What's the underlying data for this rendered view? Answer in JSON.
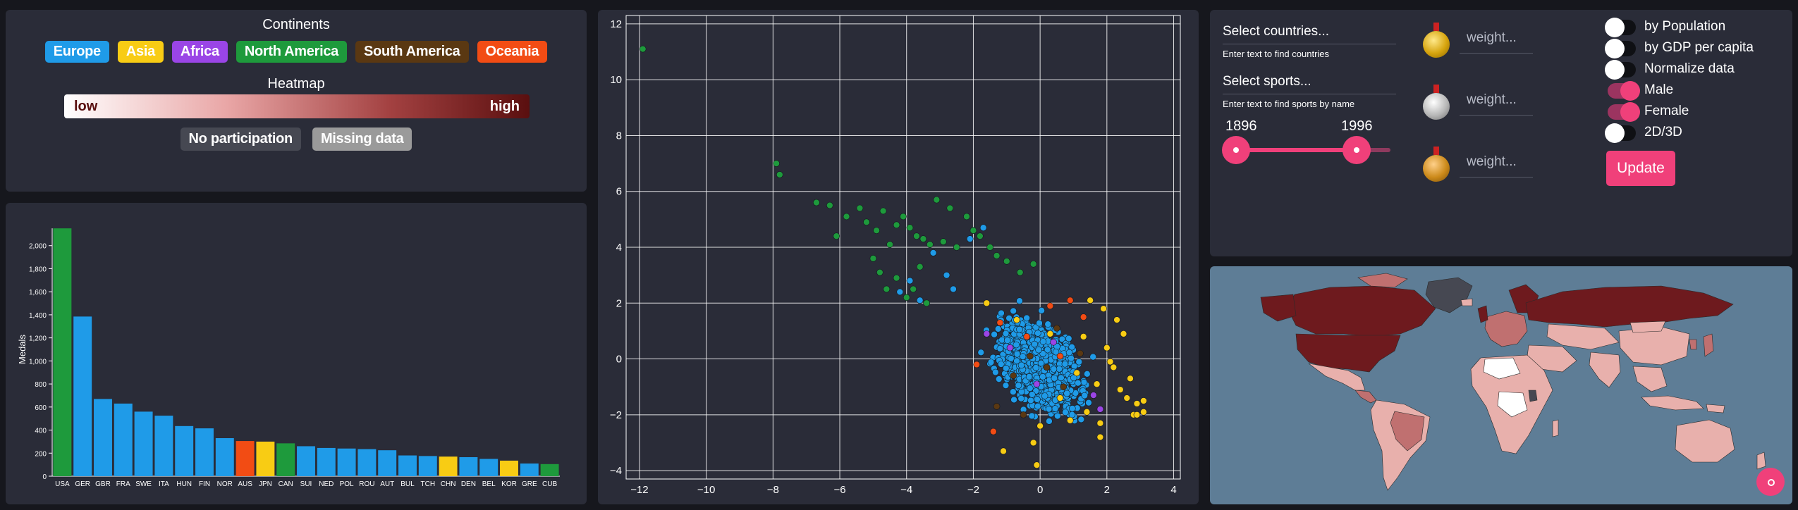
{
  "legend": {
    "continents_title": "Continents",
    "continents": [
      {
        "label": "Europe",
        "color": "#1f9be8",
        "text_color": "#ffffff"
      },
      {
        "label": "Asia",
        "color": "#f8cc14",
        "text_color": "#ffffff"
      },
      {
        "label": "Africa",
        "color": "#9a45e6",
        "text_color": "#ffffff"
      },
      {
        "label": "North America",
        "color": "#1e9a3c",
        "text_color": "#ffffff"
      },
      {
        "label": "South America",
        "color": "#5a3812",
        "text_color": "#ffffff"
      },
      {
        "label": "Oceania",
        "color": "#f24c14",
        "text_color": "#ffffff"
      }
    ],
    "heatmap_title": "Heatmap",
    "heatmap_low": "low",
    "heatmap_high": "high",
    "no_participation": "No participation",
    "no_participation_color": "#464852",
    "missing_data": "Missing data",
    "missing_data_color": "#9a9a9a"
  },
  "chart_data": [
    {
      "type": "bar",
      "ylabel": "Medals",
      "ylim": [
        0,
        2200
      ],
      "yticks": [
        0,
        200,
        400,
        600,
        800,
        1000,
        1200,
        1400,
        1600,
        1800,
        2000
      ],
      "ytick_labels": [
        "0",
        "200",
        "400",
        "600",
        "800",
        "1,000",
        "1,200",
        "1,400",
        "1,600",
        "1,800",
        "2,000"
      ],
      "categories": [
        "USA",
        "GER",
        "GBR",
        "FRA",
        "SWE",
        "ITA",
        "HUN",
        "FIN",
        "NOR",
        "AUS",
        "JPN",
        "CAN",
        "SUI",
        "NED",
        "POL",
        "ROU",
        "AUT",
        "BUL",
        "TCH",
        "CHN",
        "DEN",
        "BEL",
        "KOR",
        "GRE",
        "CUB"
      ],
      "values": [
        2150,
        1385,
        670,
        630,
        560,
        525,
        435,
        415,
        330,
        305,
        300,
        285,
        260,
        245,
        240,
        235,
        225,
        180,
        175,
        170,
        165,
        150,
        135,
        110,
        105
      ],
      "continents": [
        "North America",
        "Europe",
        "Europe",
        "Europe",
        "Europe",
        "Europe",
        "Europe",
        "Europe",
        "Europe",
        "Oceania",
        "Asia",
        "North America",
        "Europe",
        "Europe",
        "Europe",
        "Europe",
        "Europe",
        "Europe",
        "Europe",
        "Asia",
        "Europe",
        "Europe",
        "Asia",
        "Europe",
        "North America"
      ],
      "grid": false
    },
    {
      "type": "scatter",
      "xlim": [
        -12.4,
        4.2
      ],
      "ylim": [
        -4.3,
        12.3
      ],
      "xticks": [
        -12,
        -10,
        -8,
        -6,
        -4,
        -2,
        0,
        2,
        4
      ],
      "xtick_labels": [
        "−12",
        "−10",
        "−8",
        "−6",
        "−4",
        "−2",
        "0",
        "2",
        "4"
      ],
      "yticks": [
        -4,
        -2,
        0,
        2,
        4,
        6,
        8,
        10,
        12
      ],
      "ytick_labels": [
        "−4",
        "−2",
        "0",
        "2",
        "4",
        "6",
        "8",
        "10",
        "12"
      ],
      "grid": true,
      "points": [
        {
          "x": -11.9,
          "y": 11.1,
          "c": "North America"
        },
        {
          "x": -7.9,
          "y": 7.0,
          "c": "North America"
        },
        {
          "x": -7.8,
          "y": 6.6,
          "c": "North America"
        },
        {
          "x": -6.7,
          "y": 5.6,
          "c": "North America"
        },
        {
          "x": -6.3,
          "y": 5.5,
          "c": "North America"
        },
        {
          "x": -6.1,
          "y": 4.4,
          "c": "North America"
        },
        {
          "x": -5.8,
          "y": 5.1,
          "c": "North America"
        },
        {
          "x": -5.4,
          "y": 5.4,
          "c": "North America"
        },
        {
          "x": -5.2,
          "y": 4.9,
          "c": "North America"
        },
        {
          "x": -4.9,
          "y": 4.6,
          "c": "North America"
        },
        {
          "x": -4.7,
          "y": 5.3,
          "c": "North America"
        },
        {
          "x": -4.5,
          "y": 4.1,
          "c": "North America"
        },
        {
          "x": -4.3,
          "y": 4.8,
          "c": "North America"
        },
        {
          "x": -4.1,
          "y": 5.1,
          "c": "North America"
        },
        {
          "x": -3.9,
          "y": 4.7,
          "c": "North America"
        },
        {
          "x": -3.7,
          "y": 4.4,
          "c": "North America"
        },
        {
          "x": -3.5,
          "y": 4.3,
          "c": "North America"
        },
        {
          "x": -3.3,
          "y": 4.1,
          "c": "North America"
        },
        {
          "x": -3.1,
          "y": 5.7,
          "c": "North America"
        },
        {
          "x": -2.9,
          "y": 4.2,
          "c": "North America"
        },
        {
          "x": -2.7,
          "y": 5.4,
          "c": "North America"
        },
        {
          "x": -2.5,
          "y": 4.0,
          "c": "North America"
        },
        {
          "x": -5.0,
          "y": 3.6,
          "c": "North America"
        },
        {
          "x": -4.8,
          "y": 3.1,
          "c": "North America"
        },
        {
          "x": -4.6,
          "y": 2.5,
          "c": "North America"
        },
        {
          "x": -4.3,
          "y": 2.9,
          "c": "North America"
        },
        {
          "x": -4.0,
          "y": 2.2,
          "c": "North America"
        },
        {
          "x": -3.8,
          "y": 2.5,
          "c": "North America"
        },
        {
          "x": -3.6,
          "y": 3.3,
          "c": "North America"
        },
        {
          "x": -3.4,
          "y": 2.0,
          "c": "North America"
        },
        {
          "x": -2.2,
          "y": 5.1,
          "c": "North America"
        },
        {
          "x": -2.0,
          "y": 4.6,
          "c": "North America"
        },
        {
          "x": -1.8,
          "y": 4.4,
          "c": "North America"
        },
        {
          "x": -1.5,
          "y": 4.0,
          "c": "North America"
        },
        {
          "x": -1.3,
          "y": 3.7,
          "c": "North America"
        },
        {
          "x": -1.0,
          "y": 3.5,
          "c": "North America"
        },
        {
          "x": -0.6,
          "y": 3.1,
          "c": "North America"
        },
        {
          "x": -0.2,
          "y": 3.4,
          "c": "North America"
        },
        {
          "x": -3.2,
          "y": 3.8,
          "c": "Europe"
        },
        {
          "x": -2.1,
          "y": 4.3,
          "c": "Europe"
        },
        {
          "x": -1.7,
          "y": 4.7,
          "c": "Europe"
        },
        {
          "x": -3.9,
          "y": 2.8,
          "c": "Europe"
        },
        {
          "x": -4.2,
          "y": 2.4,
          "c": "Europe"
        },
        {
          "x": -3.6,
          "y": 2.1,
          "c": "Europe"
        },
        {
          "x": -2.8,
          "y": 3.0,
          "c": "Europe"
        },
        {
          "x": -2.6,
          "y": 2.5,
          "c": "Europe"
        },
        {
          "x": -1.2,
          "y": 1.3,
          "c": "Oceania"
        },
        {
          "x": -0.4,
          "y": 0.8,
          "c": "Oceania"
        },
        {
          "x": 0.3,
          "y": 1.9,
          "c": "Oceania"
        },
        {
          "x": 0.9,
          "y": 2.1,
          "c": "Oceania"
        },
        {
          "x": 0.6,
          "y": 0.1,
          "c": "Oceania"
        },
        {
          "x": -1.4,
          "y": -2.6,
          "c": "Oceania"
        },
        {
          "x": -1.9,
          "y": -0.2,
          "c": "Oceania"
        },
        {
          "x": 1.3,
          "y": 1.5,
          "c": "Oceania"
        },
        {
          "x": -0.9,
          "y": 0.4,
          "c": "Africa"
        },
        {
          "x": -0.1,
          "y": -0.9,
          "c": "Africa"
        },
        {
          "x": 0.4,
          "y": 0.6,
          "c": "Africa"
        },
        {
          "x": 1.8,
          "y": -1.8,
          "c": "Africa"
        },
        {
          "x": -1.6,
          "y": 0.9,
          "c": "Africa"
        },
        {
          "x": 1.6,
          "y": -1.3,
          "c": "Africa"
        },
        {
          "x": -0.3,
          "y": 0.1,
          "c": "South America"
        },
        {
          "x": 0.2,
          "y": -0.3,
          "c": "South America"
        },
        {
          "x": -0.8,
          "y": -0.6,
          "c": "South America"
        },
        {
          "x": 0.7,
          "y": -1.0,
          "c": "South America"
        },
        {
          "x": 1.2,
          "y": 0.2,
          "c": "South America"
        },
        {
          "x": -1.3,
          "y": -1.7,
          "c": "South America"
        },
        {
          "x": 0.5,
          "y": 1.1,
          "c": "South America"
        },
        {
          "x": -0.5,
          "y": -2.0,
          "c": "South America"
        },
        {
          "x": 2.6,
          "y": -1.4,
          "c": "Asia"
        },
        {
          "x": 2.9,
          "y": -1.6,
          "c": "Asia"
        },
        {
          "x": 3.1,
          "y": -1.5,
          "c": "Asia"
        },
        {
          "x": 2.4,
          "y": -1.1,
          "c": "Asia"
        },
        {
          "x": 2.2,
          "y": -0.3,
          "c": "Asia"
        },
        {
          "x": 2.0,
          "y": 0.4,
          "c": "Asia"
        },
        {
          "x": 1.7,
          "y": -0.9,
          "c": "Asia"
        },
        {
          "x": 1.4,
          "y": -1.9,
          "c": "Asia"
        },
        {
          "x": 1.1,
          "y": -0.5,
          "c": "Asia"
        },
        {
          "x": 2.5,
          "y": 0.9,
          "c": "Asia"
        },
        {
          "x": 1.9,
          "y": 1.8,
          "c": "Asia"
        },
        {
          "x": 1.5,
          "y": 2.1,
          "c": "Asia"
        },
        {
          "x": 0.9,
          "y": -2.2,
          "c": "Asia"
        },
        {
          "x": 2.7,
          "y": -0.7,
          "c": "Asia"
        },
        {
          "x": -1.6,
          "y": 2.0,
          "c": "Asia"
        },
        {
          "x": 0.0,
          "y": -2.4,
          "c": "Asia"
        },
        {
          "x": 1.8,
          "y": -2.3,
          "c": "Asia"
        },
        {
          "x": 2.8,
          "y": -2.0,
          "c": "Asia"
        },
        {
          "x": 3.1,
          "y": -1.9,
          "c": "Asia"
        },
        {
          "x": -0.2,
          "y": -3.0,
          "c": "Asia"
        },
        {
          "x": -0.1,
          "y": -3.8,
          "c": "Asia"
        },
        {
          "x": 1.8,
          "y": -2.8,
          "c": "Asia"
        },
        {
          "x": 2.9,
          "y": -2.0,
          "c": "Asia"
        },
        {
          "x": 0.6,
          "y": -1.4,
          "c": "Asia"
        },
        {
          "x": 1.3,
          "y": 0.8,
          "c": "Asia"
        },
        {
          "x": 2.1,
          "y": -0.1,
          "c": "Asia"
        },
        {
          "x": -1.1,
          "y": -3.3,
          "c": "Asia"
        },
        {
          "x": 0.3,
          "y": 0.9,
          "c": "Asia"
        },
        {
          "x": -0.7,
          "y": 1.4,
          "c": "Asia"
        },
        {
          "x": 2.3,
          "y": 1.4,
          "c": "Asia"
        }
      ]
    }
  ],
  "controls": {
    "countries_label": "Select countries...",
    "countries_hint": "Enter text to find countries",
    "sports_label": "Select sports...",
    "sports_hint": "Enter text to find sports by name",
    "year_start": "1896",
    "year_end": "1996",
    "year_range": [
      1896,
      1996
    ],
    "weight_placeholder": "weight...",
    "toggles": [
      {
        "label": "by Population",
        "on": false
      },
      {
        "label": "by GDP per capita",
        "on": false
      },
      {
        "label": "Normalize data",
        "on": false
      },
      {
        "label": "Male",
        "on": true
      },
      {
        "label": "Female",
        "on": true
      },
      {
        "label": "2D/3D",
        "on": false
      }
    ],
    "update_label": "Update",
    "accent": "#f0407a"
  },
  "map": {
    "ocean_color": "#5e7d96",
    "colors": {
      "dark": "#6e1a1e",
      "mid": "#c07070",
      "light": "#e8b0ac",
      "white": "#ffffff",
      "gray": "#464852"
    }
  }
}
